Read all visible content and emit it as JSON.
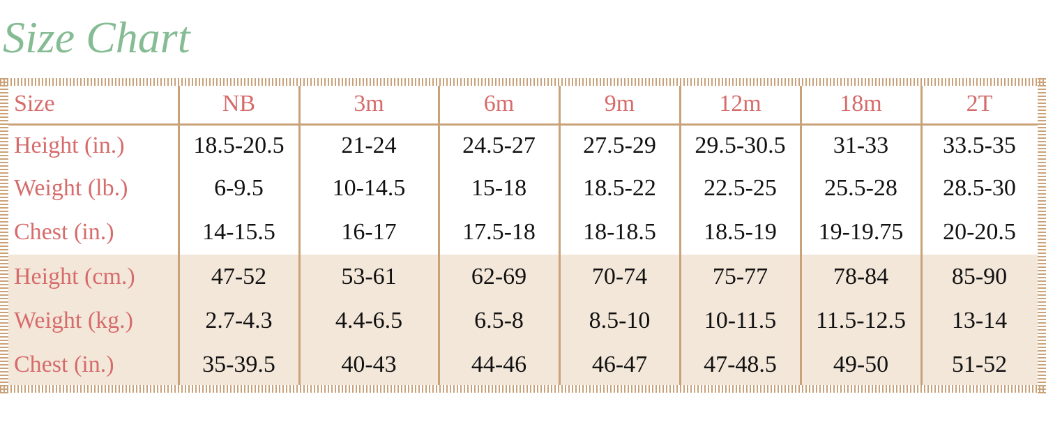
{
  "title": "Size Chart",
  "table": {
    "header": [
      "Size",
      "NB",
      "3m",
      "6m",
      "9m",
      "12m",
      "18m",
      "2T"
    ],
    "rows": [
      [
        "Height (in.)",
        "18.5-20.5",
        "21-24",
        "24.5-27",
        "27.5-29",
        "29.5-30.5",
        "31-33",
        "33.5-35"
      ],
      [
        "Weight (lb.)",
        "6-9.5",
        "10-14.5",
        "15-18",
        "18.5-22",
        "22.5-25",
        "25.5-28",
        "28.5-30"
      ],
      [
        "Chest (in.)",
        "14-15.5",
        "16-17",
        "17.5-18",
        "18-18.5",
        "18.5-19",
        "19-19.75",
        "20-20.5"
      ],
      [
        "Height (cm.)",
        "47-52",
        "53-61",
        "62-69",
        "70-74",
        "75-77",
        "78-84",
        "85-90"
      ],
      [
        "Weight (kg.)",
        "2.7-4.3",
        "4.4-6.5",
        "6.5-8",
        "8.5-10",
        "10-11.5",
        "11.5-12.5",
        "13-14"
      ],
      [
        "Chest (in.)",
        "35-39.5",
        "40-43",
        "44-46",
        "46-47",
        "47-48.5",
        "49-50",
        "51-52"
      ]
    ]
  }
}
